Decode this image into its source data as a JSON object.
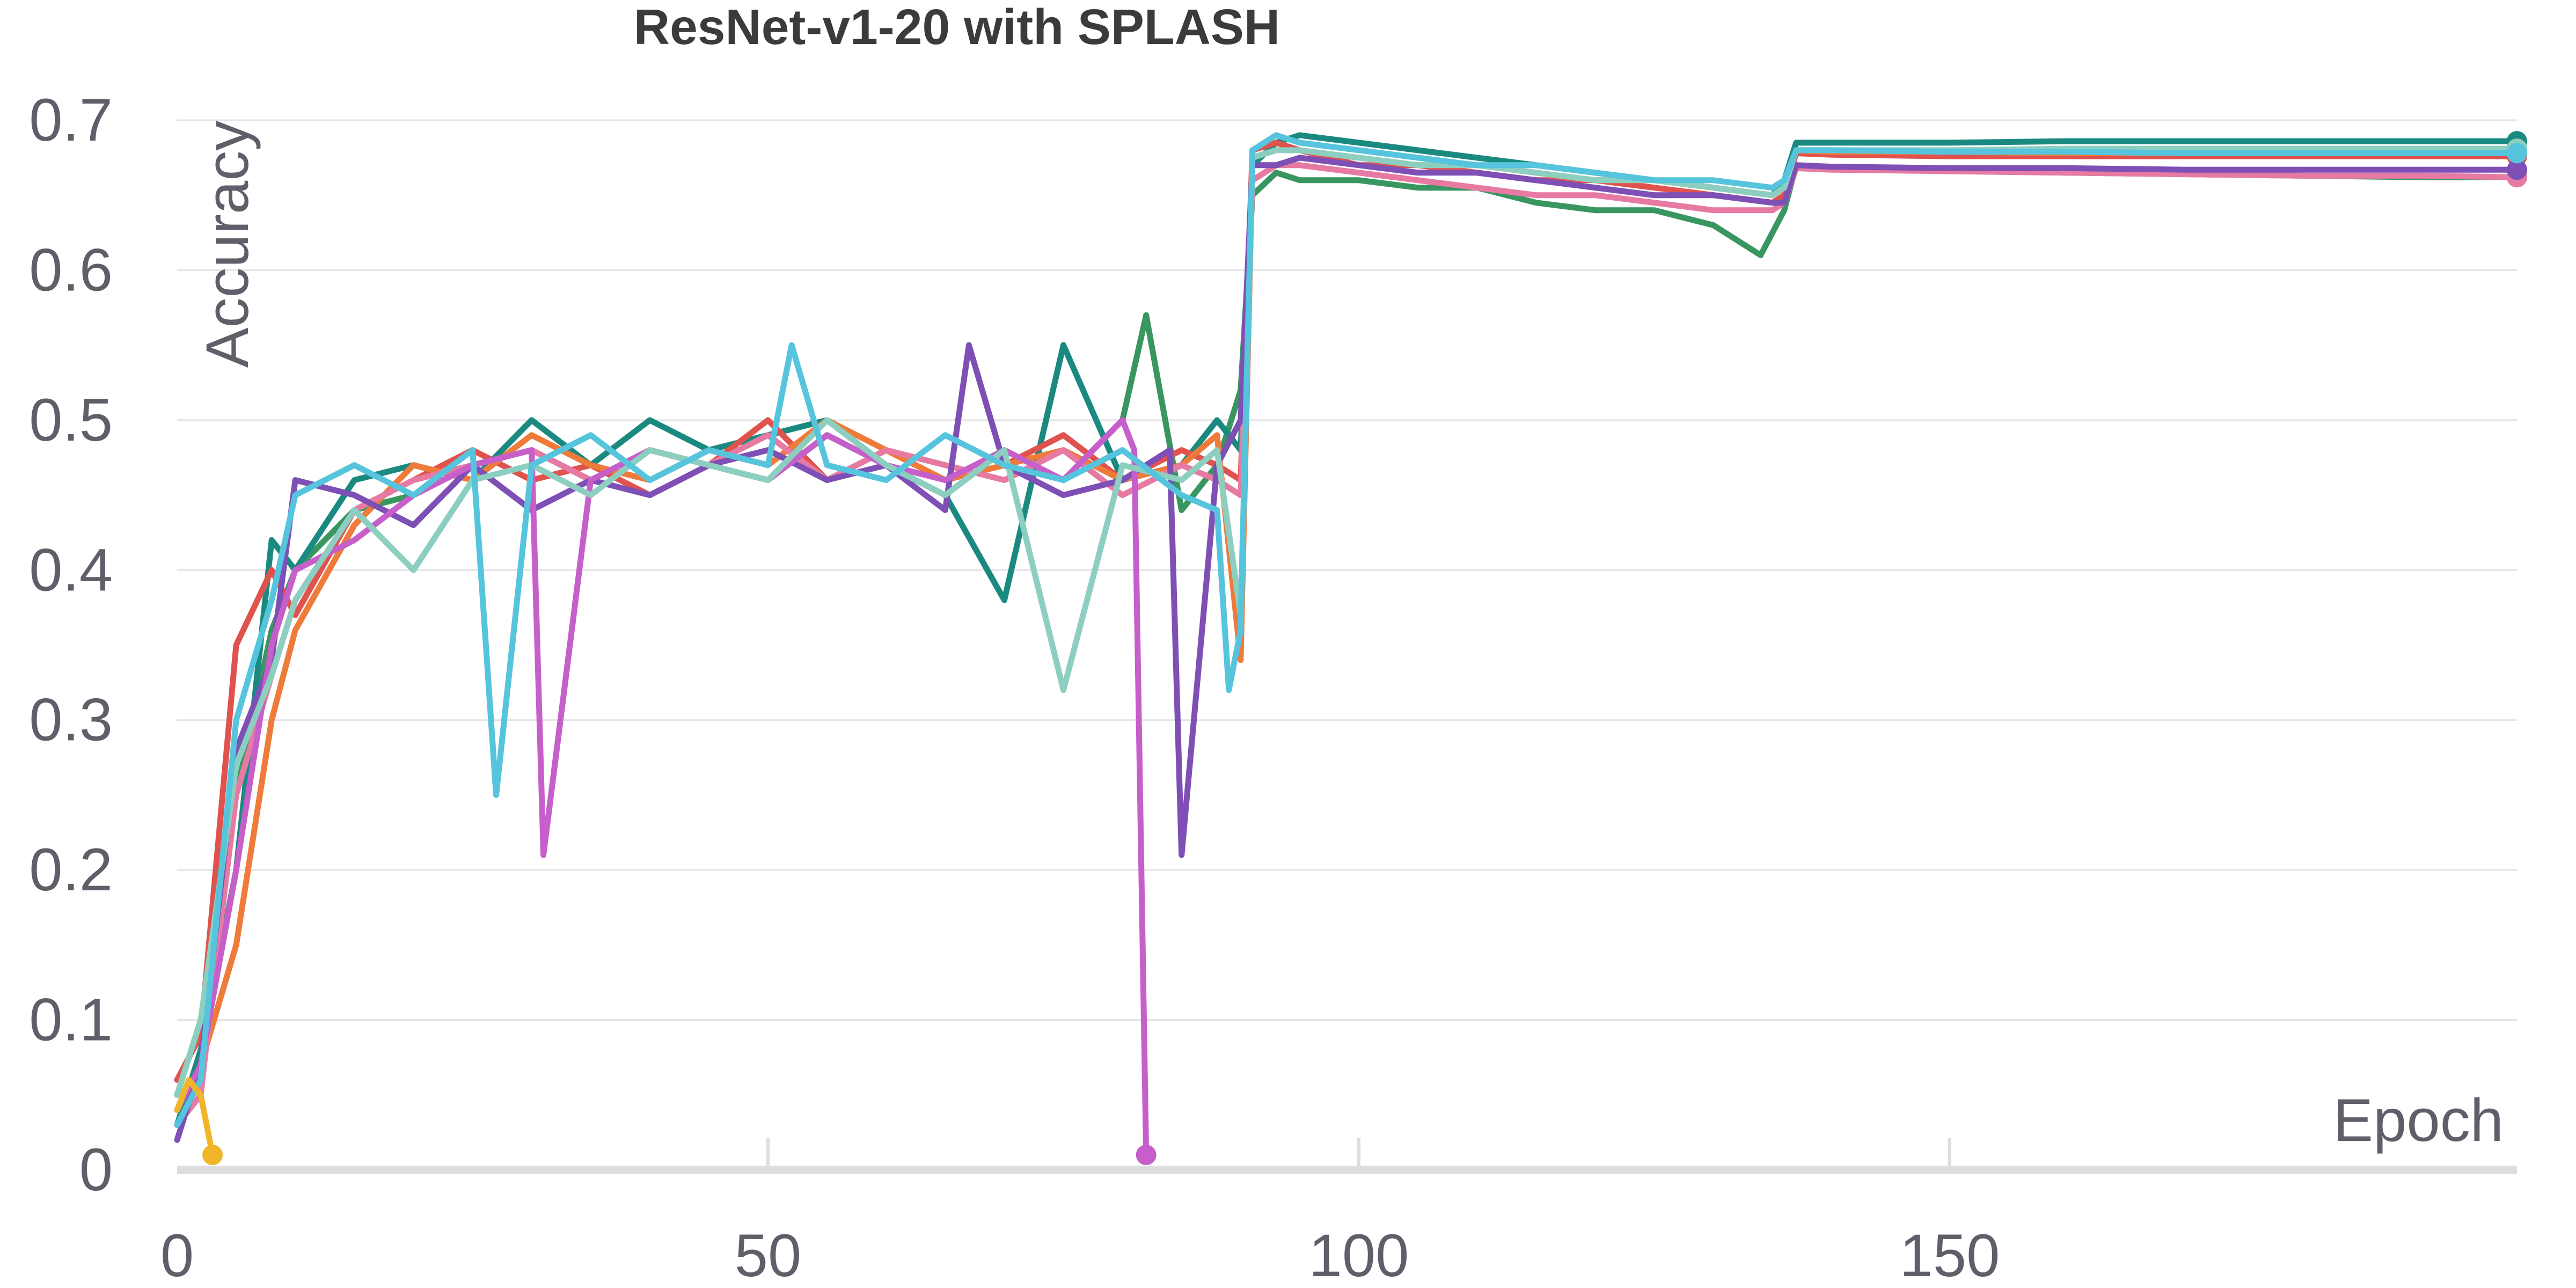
{
  "chart_data": {
    "type": "line",
    "title": "ResNet-v1-20 with SPLASH",
    "xlabel": "Epoch",
    "ylabel": "Accuracy",
    "xlim": [
      0,
      198
    ],
    "ylim": [
      0,
      0.7
    ],
    "xticks": [
      0,
      50,
      100,
      150
    ],
    "yticks": [
      0,
      0.1,
      0.2,
      0.3,
      0.4,
      0.5,
      0.6,
      0.7
    ],
    "ytick_labels": [
      "0",
      "0.1",
      "0.2",
      "0.3",
      "0.4",
      "0.5",
      "0.6",
      "0.7"
    ],
    "grid": "horizontal",
    "legend": "none",
    "series": [
      {
        "color": "#3a9660",
        "x": [
          0,
          2,
          5,
          8,
          10,
          15,
          20,
          25,
          30,
          35,
          40,
          45,
          50,
          55,
          60,
          65,
          70,
          75,
          80,
          82,
          85,
          88,
          90,
          91,
          93,
          95,
          100,
          105,
          110,
          115,
          120,
          125,
          130,
          134,
          136,
          137,
          140,
          150,
          160,
          170,
          180,
          190,
          198
        ],
        "y": [
          0.05,
          0.1,
          0.25,
          0.36,
          0.4,
          0.44,
          0.45,
          0.47,
          0.48,
          0.46,
          0.48,
          0.47,
          0.46,
          0.49,
          0.47,
          0.45,
          0.48,
          0.46,
          0.5,
          0.57,
          0.44,
          0.47,
          0.52,
          0.65,
          0.665,
          0.66,
          0.66,
          0.655,
          0.655,
          0.645,
          0.64,
          0.64,
          0.63,
          0.61,
          0.64,
          0.67,
          0.668,
          0.666,
          0.665,
          0.664,
          0.663,
          0.662,
          0.662
        ]
      },
      {
        "color": "#1a8a80",
        "x": [
          0,
          2,
          5,
          8,
          10,
          15,
          20,
          25,
          30,
          35,
          40,
          45,
          50,
          55,
          60,
          65,
          70,
          75,
          80,
          85,
          88,
          90,
          91,
          93,
          95,
          100,
          105,
          110,
          115,
          120,
          125,
          130,
          135,
          136,
          137,
          140,
          150,
          160,
          170,
          180,
          190,
          198
        ],
        "y": [
          0.03,
          0.08,
          0.2,
          0.42,
          0.4,
          0.46,
          0.47,
          0.46,
          0.5,
          0.47,
          0.5,
          0.48,
          0.49,
          0.5,
          0.47,
          0.45,
          0.38,
          0.55,
          0.46,
          0.47,
          0.5,
          0.48,
          0.67,
          0.685,
          0.69,
          0.685,
          0.68,
          0.675,
          0.67,
          0.665,
          0.66,
          0.655,
          0.65,
          0.66,
          0.685,
          0.685,
          0.685,
          0.686,
          0.686,
          0.686,
          0.686,
          0.686
        ]
      },
      {
        "color": "#e0524d",
        "x": [
          0,
          2,
          5,
          8,
          10,
          15,
          20,
          25,
          30,
          35,
          40,
          45,
          50,
          55,
          60,
          65,
          70,
          75,
          80,
          85,
          88,
          90,
          91,
          93,
          95,
          100,
          105,
          110,
          115,
          120,
          125,
          130,
          135,
          136,
          137,
          140,
          150,
          160,
          170,
          180,
          190,
          198
        ],
        "y": [
          0.06,
          0.09,
          0.35,
          0.4,
          0.37,
          0.44,
          0.46,
          0.48,
          0.46,
          0.47,
          0.45,
          0.47,
          0.5,
          0.46,
          0.48,
          0.46,
          0.47,
          0.49,
          0.46,
          0.48,
          0.47,
          0.46,
          0.68,
          0.685,
          0.68,
          0.67,
          0.67,
          0.665,
          0.66,
          0.66,
          0.655,
          0.65,
          0.645,
          0.65,
          0.678,
          0.677,
          0.676,
          0.676,
          0.676,
          0.676,
          0.676,
          0.676
        ]
      },
      {
        "color": "#ef7b3b",
        "x": [
          0,
          2,
          5,
          8,
          10,
          15,
          20,
          25,
          30,
          35,
          40,
          45,
          50,
          55,
          60,
          65,
          70,
          75,
          80,
          85,
          88,
          90,
          91,
          93,
          95,
          100,
          105,
          110,
          115,
          120,
          125,
          130,
          135,
          136,
          137,
          140,
          150,
          160,
          170,
          180,
          190,
          198
        ],
        "y": [
          0.04,
          0.07,
          0.15,
          0.3,
          0.36,
          0.43,
          0.47,
          0.46,
          0.49,
          0.47,
          0.46,
          0.48,
          0.47,
          0.5,
          0.48,
          0.46,
          0.47,
          0.48,
          0.46,
          0.47,
          0.49,
          0.34,
          0.675,
          0.68,
          0.68,
          0.675,
          0.67,
          0.67,
          0.665,
          0.66,
          0.66,
          0.655,
          0.65,
          0.655,
          0.68,
          0.679,
          0.679,
          0.678,
          0.678,
          0.678,
          0.678,
          0.678
        ]
      },
      {
        "color": "#e77aa3",
        "x": [
          0,
          2,
          3,
          5,
          8,
          10,
          15,
          20,
          25,
          30,
          35,
          40,
          45,
          50,
          55,
          60,
          65,
          70,
          75,
          80,
          85,
          88,
          90,
          91,
          93,
          95,
          100,
          105,
          110,
          115,
          120,
          125,
          130,
          135,
          136,
          137,
          140,
          150,
          160,
          170,
          180,
          190,
          198
        ],
        "y": [
          0.03,
          0.05,
          0.12,
          0.25,
          0.33,
          0.38,
          0.44,
          0.46,
          0.47,
          0.48,
          0.46,
          0.48,
          0.47,
          0.49,
          0.46,
          0.48,
          0.47,
          0.46,
          0.48,
          0.45,
          0.47,
          0.46,
          0.45,
          0.66,
          0.67,
          0.67,
          0.665,
          0.66,
          0.655,
          0.65,
          0.65,
          0.645,
          0.64,
          0.64,
          0.645,
          0.668,
          0.667,
          0.666,
          0.665,
          0.664,
          0.663,
          0.663,
          0.662
        ]
      },
      {
        "color": "#7e4fb5",
        "x": [
          0,
          2,
          5,
          8,
          10,
          15,
          20,
          25,
          30,
          35,
          40,
          45,
          50,
          55,
          60,
          65,
          67,
          70,
          75,
          80,
          84,
          85,
          88,
          90,
          91,
          93,
          95,
          100,
          105,
          110,
          115,
          120,
          125,
          130,
          135,
          136,
          137,
          140,
          150,
          160,
          170,
          180,
          190,
          198
        ],
        "y": [
          0.02,
          0.07,
          0.28,
          0.34,
          0.46,
          0.45,
          0.43,
          0.47,
          0.44,
          0.46,
          0.45,
          0.47,
          0.48,
          0.46,
          0.47,
          0.44,
          0.55,
          0.47,
          0.45,
          0.46,
          0.48,
          0.21,
          0.47,
          0.5,
          0.67,
          0.67,
          0.675,
          0.67,
          0.665,
          0.665,
          0.66,
          0.655,
          0.65,
          0.65,
          0.645,
          0.645,
          0.67,
          0.669,
          0.668,
          0.668,
          0.667,
          0.667,
          0.667,
          0.667
        ]
      },
      {
        "color": "#c65fc9",
        "x": [
          0,
          2,
          5,
          8,
          10,
          15,
          20,
          25,
          30,
          31,
          35,
          40,
          45,
          50,
          55,
          60,
          65,
          70,
          75,
          80,
          81,
          82
        ],
        "y": [
          0.04,
          0.07,
          0.2,
          0.35,
          0.4,
          0.42,
          0.45,
          0.47,
          0.48,
          0.21,
          0.46,
          0.48,
          0.47,
          0.46,
          0.49,
          0.47,
          0.46,
          0.48,
          0.46,
          0.5,
          0.48,
          0.01
        ]
      },
      {
        "color": "#8ccfc0",
        "x": [
          0,
          2,
          5,
          8,
          10,
          15,
          20,
          25,
          30,
          35,
          40,
          45,
          50,
          55,
          60,
          65,
          70,
          75,
          80,
          85,
          88,
          90,
          91,
          93,
          95,
          100,
          105,
          110,
          115,
          120,
          125,
          130,
          135,
          136,
          137,
          140,
          150,
          160,
          170,
          180,
          190,
          198
        ],
        "y": [
          0.05,
          0.1,
          0.27,
          0.33,
          0.38,
          0.44,
          0.4,
          0.46,
          0.47,
          0.45,
          0.48,
          0.47,
          0.46,
          0.5,
          0.47,
          0.45,
          0.48,
          0.32,
          0.47,
          0.46,
          0.48,
          0.37,
          0.675,
          0.68,
          0.68,
          0.675,
          0.67,
          0.67,
          0.665,
          0.66,
          0.66,
          0.655,
          0.65,
          0.655,
          0.68,
          0.68,
          0.68,
          0.681,
          0.681,
          0.681,
          0.681,
          0.681
        ]
      },
      {
        "color": "#56c4dc",
        "x": [
          0,
          2,
          5,
          8,
          10,
          15,
          20,
          25,
          27,
          30,
          35,
          40,
          45,
          50,
          52,
          55,
          60,
          65,
          70,
          75,
          80,
          85,
          88,
          89,
          90,
          91,
          93,
          95,
          100,
          105,
          110,
          115,
          120,
          125,
          130,
          135,
          136,
          137,
          140,
          150,
          160,
          170,
          180,
          190,
          198
        ],
        "y": [
          0.03,
          0.06,
          0.3,
          0.38,
          0.45,
          0.47,
          0.45,
          0.48,
          0.25,
          0.47,
          0.49,
          0.46,
          0.48,
          0.47,
          0.55,
          0.47,
          0.46,
          0.49,
          0.47,
          0.46,
          0.48,
          0.45,
          0.44,
          0.32,
          0.36,
          0.68,
          0.69,
          0.685,
          0.68,
          0.675,
          0.67,
          0.67,
          0.665,
          0.66,
          0.66,
          0.655,
          0.66,
          0.68,
          0.68,
          0.679,
          0.679,
          0.678,
          0.678,
          0.678,
          0.678
        ]
      },
      {
        "color": "#f0b528",
        "x": [
          0,
          1,
          2,
          3
        ],
        "y": [
          0.04,
          0.06,
          0.05,
          0.01
        ]
      }
    ]
  }
}
